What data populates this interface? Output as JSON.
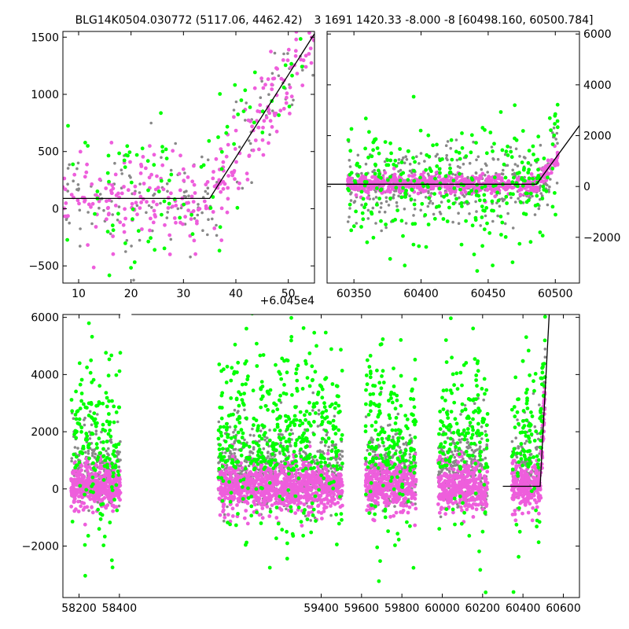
{
  "chart_data": [
    {
      "panel": "top-left",
      "type": "scatter",
      "title": "BLG14K0504.030772 (5117.06, 4462.42)",
      "xlim": [
        7,
        55
      ],
      "ylim": [
        -650,
        1550
      ],
      "x_offset_label": "+6.045e4",
      "xticks": [
        10,
        20,
        30,
        40,
        50
      ],
      "yticks": [
        -500,
        0,
        500,
        1000,
        1500
      ],
      "colors": {
        "magenta": "#ee5edc",
        "green": "#00ff00",
        "gray": "#888888"
      },
      "model_line": {
        "x": [
          7,
          35,
          55
        ],
        "y": [
          90,
          90,
          1530
        ]
      }
    },
    {
      "panel": "top-right",
      "type": "scatter",
      "title": "3 1691 1420.33 -8.000 -8 [60498.160, 60500.784]",
      "xlim": [
        60330,
        60518
      ],
      "ylim": [
        -3800,
        6100
      ],
      "xticks": [
        60350,
        60400,
        60450,
        60500
      ],
      "yticks": [
        -2000,
        0,
        2000,
        4000,
        6000
      ],
      "y_axis_side": "right",
      "colors": {
        "magenta": "#ee5edc",
        "green": "#00ff00",
        "gray": "#888888"
      },
      "model_line": {
        "x": [
          60330,
          60486,
          60518
        ],
        "y": [
          90,
          90,
          2400
        ]
      }
    },
    {
      "panel": "bottom",
      "type": "scatter",
      "xlim": [
        58120,
        60680
      ],
      "ylim": [
        -3800,
        6100
      ],
      "xticks": [
        58200,
        58400,
        59400,
        59600,
        59800,
        60000,
        60200,
        60400,
        60600
      ],
      "yticks": [
        -2000,
        0,
        2000,
        4000,
        6000
      ],
      "seasons": [
        [
          58160,
          58405
        ],
        [
          58890,
          59505
        ],
        [
          59620,
          59870
        ],
        [
          59980,
          60225
        ],
        [
          60345,
          60510
        ]
      ],
      "colors": {
        "magenta": "#ee5edc",
        "green": "#00ff00",
        "gray": "#888888"
      },
      "model_line": {
        "x": [
          60300,
          60485,
          60530
        ],
        "y": [
          90,
          90,
          6100
        ]
      }
    }
  ]
}
